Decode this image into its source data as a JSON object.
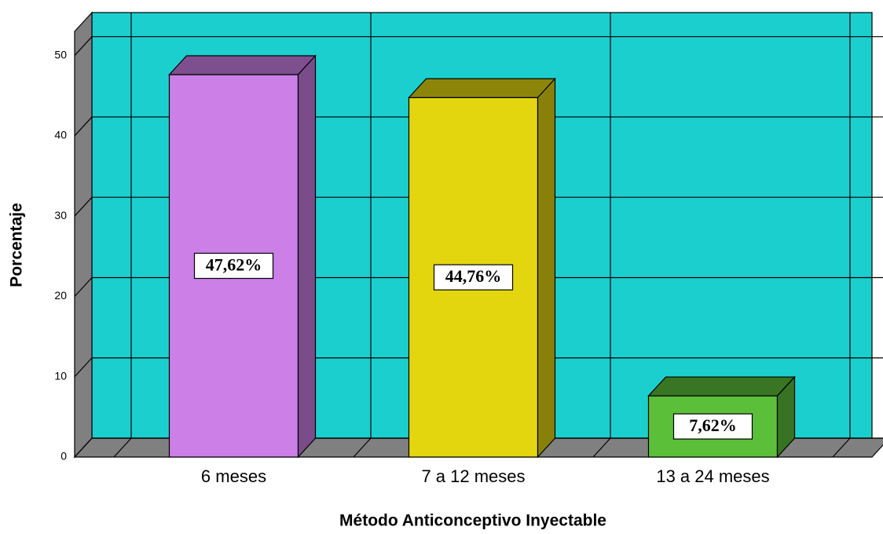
{
  "chart_data": {
    "type": "bar3d",
    "categories": [
      "6 meses",
      "7 a 12 meses",
      "13 a 24 meses"
    ],
    "values": [
      47.62,
      44.76,
      7.62
    ],
    "value_labels": [
      "47,62%",
      "44,76%",
      "7,62%"
    ],
    "colors": [
      "#cc7fe6",
      "#e3d60f",
      "#5bbf3a"
    ],
    "xlabel": "Método Anticonceptivo Inyectable",
    "ylabel": "Porcentaje",
    "ylim": [
      0,
      53
    ],
    "yticks": [
      0,
      10,
      20,
      30,
      40,
      50
    ],
    "grid": true,
    "background": "#1ccfcf"
  }
}
